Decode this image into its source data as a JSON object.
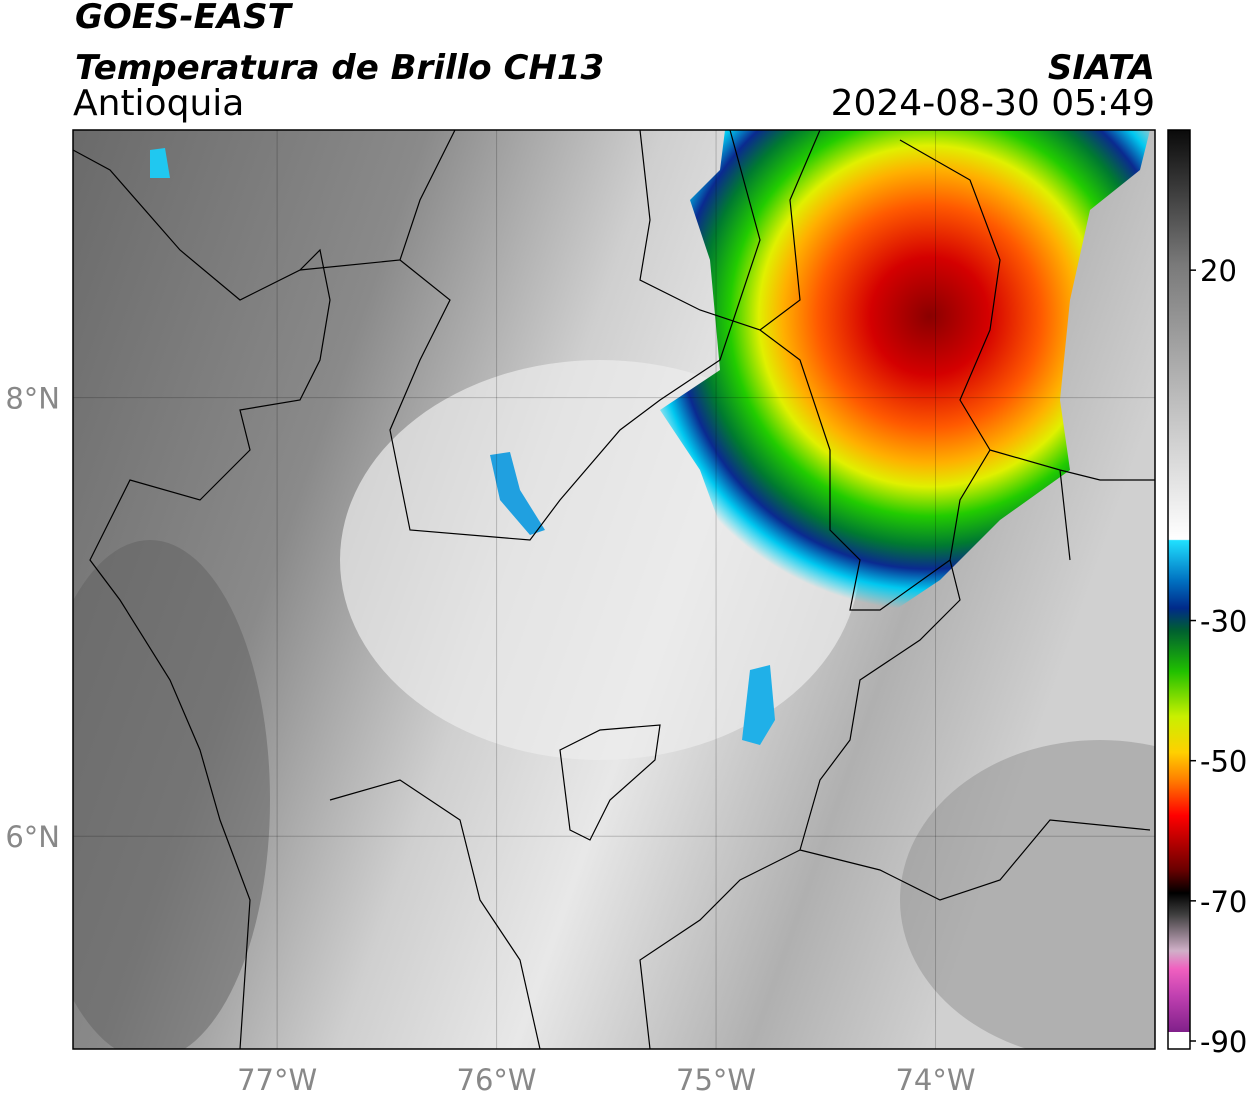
{
  "header": {
    "title": "GOES-EAST",
    "subtitle": "Temperatura de Brillo CH13",
    "region": "Antioquia",
    "source": "SIATA",
    "datetime": "2024-08-30 05:49"
  },
  "map": {
    "xlim": [
      -77.93,
      -73.0
    ],
    "ylim": [
      5.03,
      9.22
    ],
    "xticks": [
      {
        "value": -77,
        "label": "77°W"
      },
      {
        "value": -76,
        "label": "76°W"
      },
      {
        "value": -75,
        "label": "75°W"
      },
      {
        "value": -74,
        "label": "74°W"
      }
    ],
    "yticks": [
      {
        "value": 8,
        "label": "8°N"
      },
      {
        "value": 6,
        "label": "6°N"
      }
    ],
    "grid": true
  },
  "colorbar": {
    "lim": [
      -90,
      40
    ],
    "ticks": [
      20,
      -30,
      -50,
      -70,
      -90
    ]
  }
}
